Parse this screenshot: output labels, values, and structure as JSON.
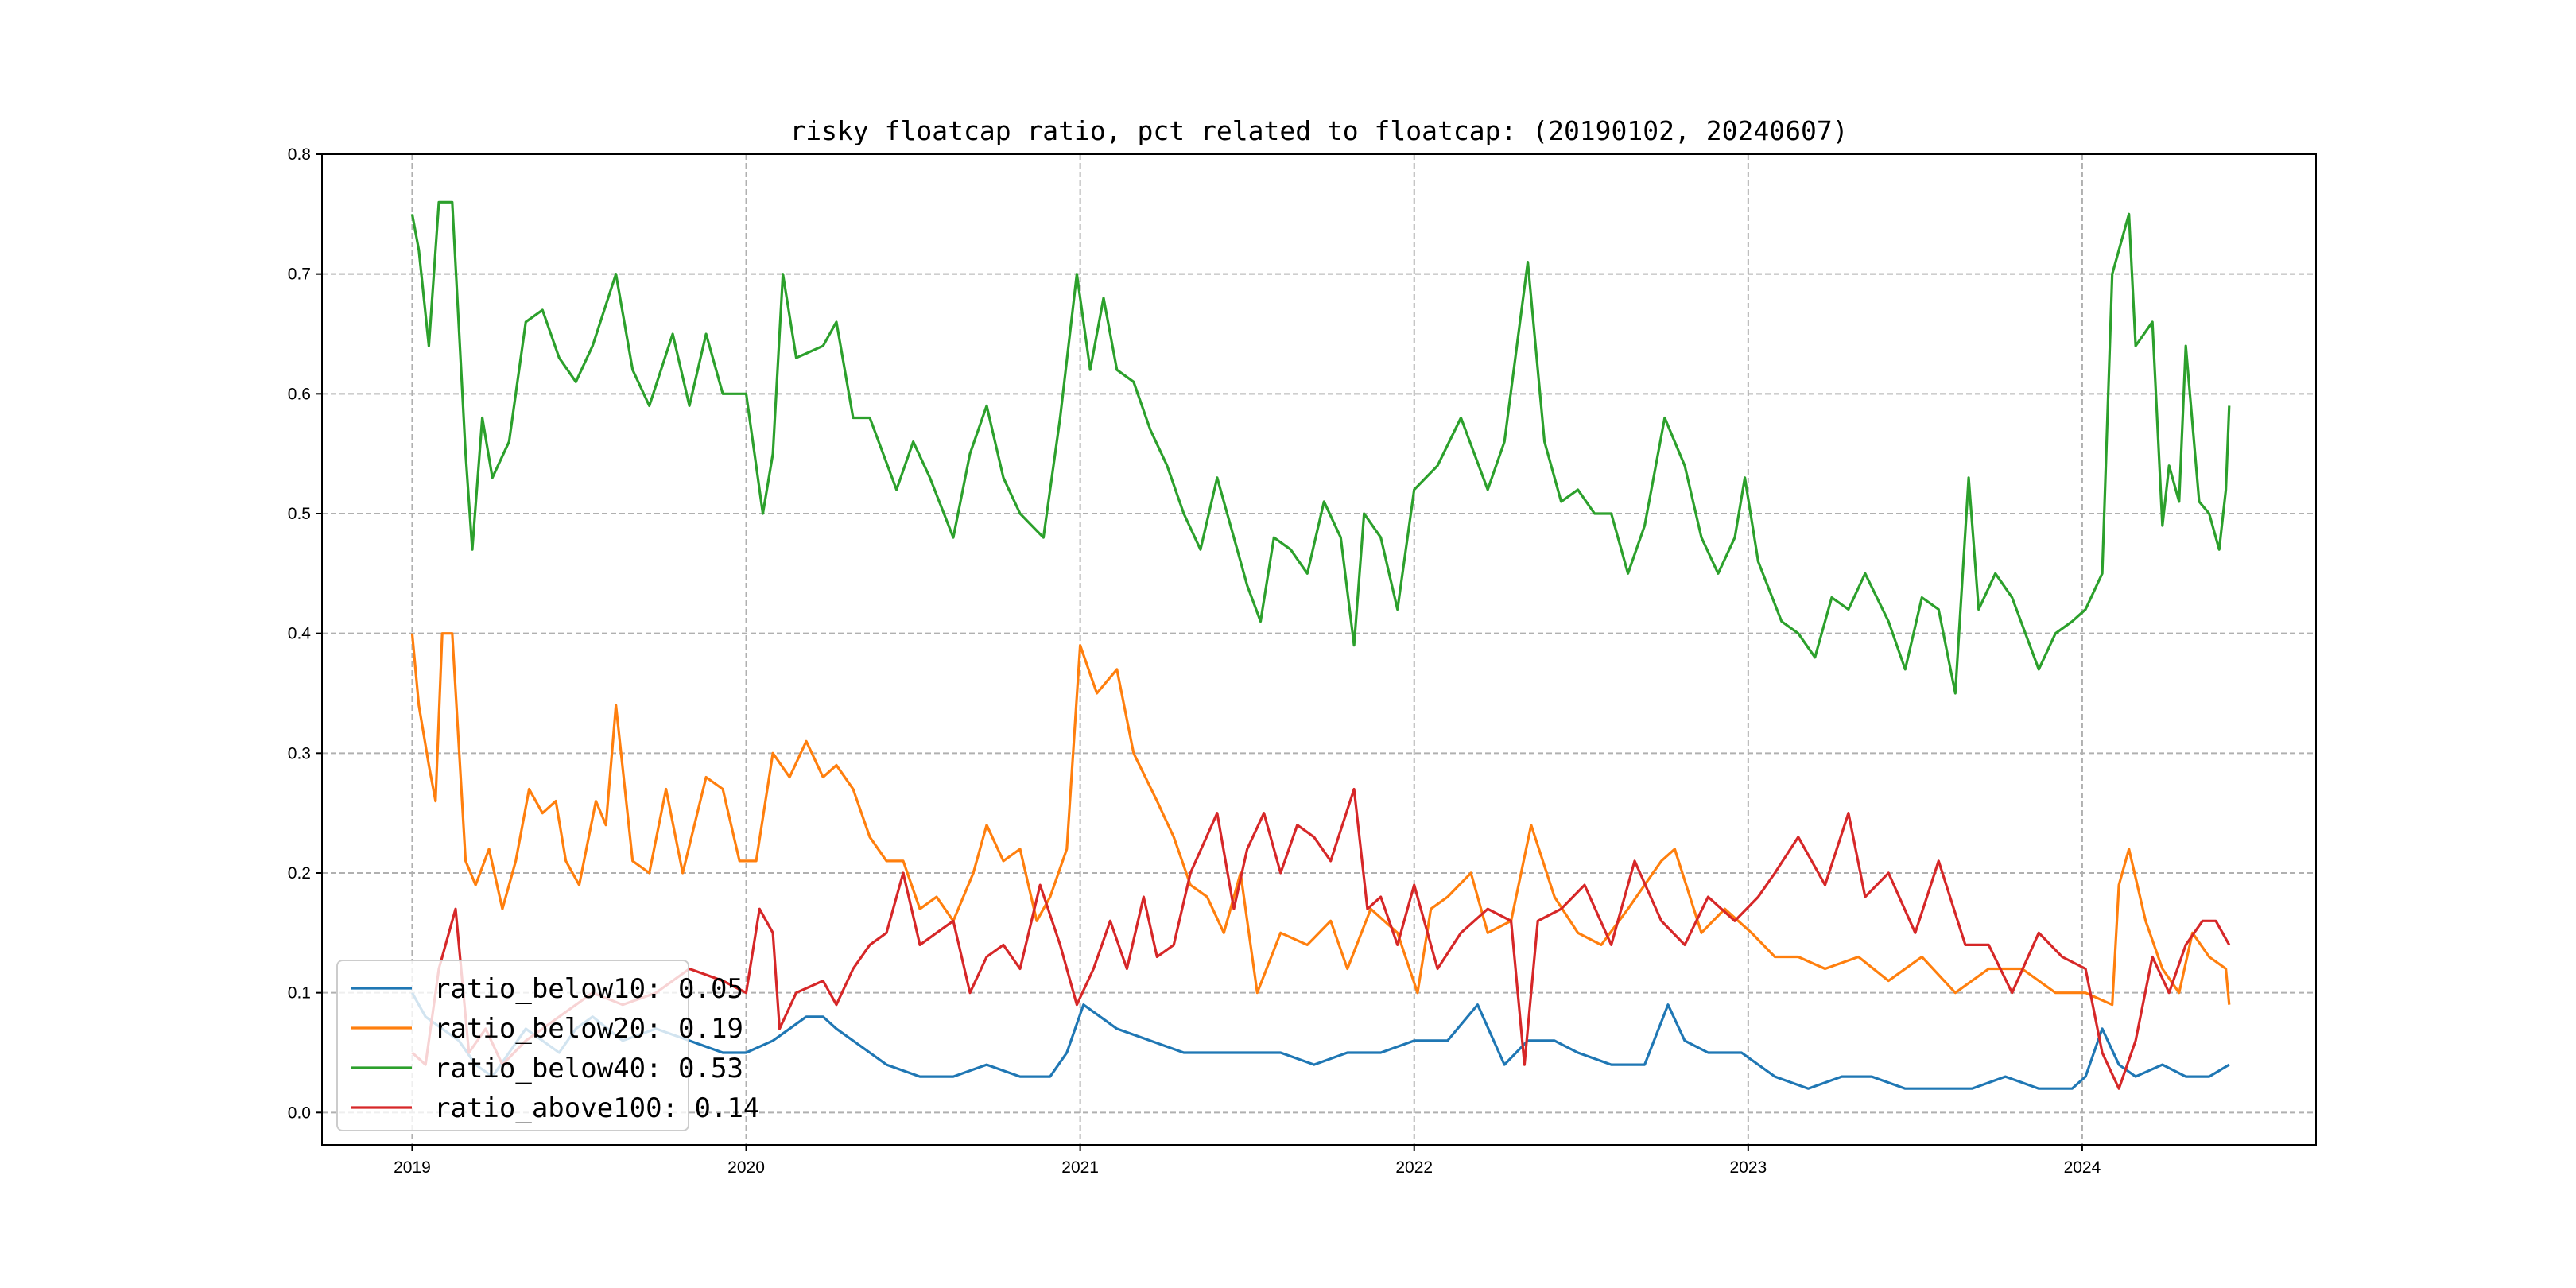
{
  "chart_data": {
    "type": "line",
    "title": "risky floatcap ratio, pct related to floatcap: (20190102, 20240607)",
    "xlabel": "",
    "ylabel": "",
    "xlim": [
      2018.73,
      2024.7
    ],
    "ylim": [
      -0.027,
      0.8
    ],
    "grid": true,
    "legend_position": "lower-left",
    "x_ticks": [
      2019,
      2020,
      2021,
      2022,
      2023,
      2024
    ],
    "x_tick_labels": [
      "2019",
      "2020",
      "2021",
      "2022",
      "2023",
      "2024"
    ],
    "y_ticks": [
      0.0,
      0.1,
      0.2,
      0.3,
      0.4,
      0.5,
      0.6,
      0.7,
      0.8
    ],
    "y_tick_labels": [
      "0.0",
      "0.1",
      "0.2",
      "0.3",
      "0.4",
      "0.5",
      "0.6",
      "0.7",
      "0.8"
    ],
    "series": [
      {
        "name": "ratio_below10",
        "legend": "ratio_below10: 0.05",
        "color": "#1f77b4",
        "x": [
          2019.0,
          2019.04,
          2019.09,
          2019.14,
          2019.19,
          2019.24,
          2019.29,
          2019.34,
          2019.39,
          2019.44,
          2019.49,
          2019.54,
          2019.63,
          2019.73,
          2019.83,
          2019.93,
          2020.0,
          2020.08,
          2020.13,
          2020.18,
          2020.23,
          2020.27,
          2020.32,
          2020.37,
          2020.42,
          2020.52,
          2020.62,
          2020.72,
          2020.82,
          2020.91,
          2020.96,
          2021.01,
          2021.06,
          2021.11,
          2021.21,
          2021.31,
          2021.41,
          2021.5,
          2021.6,
          2021.7,
          2021.8,
          2021.9,
          2022.0,
          2022.1,
          2022.19,
          2022.27,
          2022.34,
          2022.42,
          2022.49,
          2022.59,
          2022.69,
          2022.76,
          2022.81,
          2022.88,
          2022.98,
          2023.08,
          2023.18,
          2023.28,
          2023.37,
          2023.47,
          2023.57,
          2023.67,
          2023.77,
          2023.87,
          2023.97,
          2024.01,
          2024.06,
          2024.11,
          2024.16,
          2024.24,
          2024.31,
          2024.38,
          2024.44
        ],
        "y": [
          0.1,
          0.08,
          0.07,
          0.06,
          0.04,
          0.03,
          0.05,
          0.07,
          0.06,
          0.05,
          0.07,
          0.08,
          0.06,
          0.07,
          0.06,
          0.05,
          0.05,
          0.06,
          0.07,
          0.08,
          0.08,
          0.07,
          0.06,
          0.05,
          0.04,
          0.03,
          0.03,
          0.04,
          0.03,
          0.03,
          0.05,
          0.09,
          0.08,
          0.07,
          0.06,
          0.05,
          0.05,
          0.05,
          0.05,
          0.04,
          0.05,
          0.05,
          0.06,
          0.06,
          0.09,
          0.04,
          0.06,
          0.06,
          0.05,
          0.04,
          0.04,
          0.09,
          0.06,
          0.05,
          0.05,
          0.03,
          0.02,
          0.03,
          0.03,
          0.02,
          0.02,
          0.02,
          0.03,
          0.02,
          0.02,
          0.03,
          0.07,
          0.04,
          0.03,
          0.04,
          0.03,
          0.03,
          0.04
        ]
      },
      {
        "name": "ratio_below20",
        "legend": "ratio_below20: 0.19",
        "color": "#ff7f0e",
        "x": [
          2019.0,
          2019.02,
          2019.05,
          2019.07,
          2019.09,
          2019.12,
          2019.16,
          2019.19,
          2019.23,
          2019.27,
          2019.31,
          2019.35,
          2019.39,
          2019.43,
          2019.46,
          2019.5,
          2019.55,
          2019.58,
          2019.61,
          2019.66,
          2019.71,
          2019.76,
          2019.81,
          2019.88,
          2019.93,
          2019.98,
          2020.03,
          2020.08,
          2020.13,
          2020.18,
          2020.23,
          2020.27,
          2020.32,
          2020.37,
          2020.42,
          2020.47,
          2020.52,
          2020.57,
          2020.62,
          2020.68,
          2020.72,
          2020.77,
          2020.82,
          2020.87,
          2020.91,
          2020.96,
          2021.0,
          2021.05,
          2021.11,
          2021.16,
          2021.23,
          2021.28,
          2021.33,
          2021.38,
          2021.43,
          2021.48,
          2021.53,
          2021.6,
          2021.68,
          2021.75,
          2021.8,
          2021.87,
          2021.95,
          2022.01,
          2022.05,
          2022.1,
          2022.17,
          2022.22,
          2022.29,
          2022.35,
          2022.42,
          2022.49,
          2022.56,
          2022.64,
          2022.74,
          2022.78,
          2022.86,
          2022.93,
          2023.01,
          2023.08,
          2023.15,
          2023.23,
          2023.33,
          2023.42,
          2023.52,
          2023.62,
          2023.72,
          2023.82,
          2023.92,
          2024.01,
          2024.09,
          2024.11,
          2024.14,
          2024.19,
          2024.24,
          2024.29,
          2024.33,
          2024.38,
          2024.43,
          2024.44
        ],
        "y": [
          0.4,
          0.34,
          0.29,
          0.26,
          0.4,
          0.4,
          0.21,
          0.19,
          0.22,
          0.17,
          0.21,
          0.27,
          0.25,
          0.26,
          0.21,
          0.19,
          0.26,
          0.24,
          0.34,
          0.21,
          0.2,
          0.27,
          0.2,
          0.28,
          0.27,
          0.21,
          0.21,
          0.3,
          0.28,
          0.31,
          0.28,
          0.29,
          0.27,
          0.23,
          0.21,
          0.21,
          0.17,
          0.18,
          0.16,
          0.2,
          0.24,
          0.21,
          0.22,
          0.16,
          0.18,
          0.22,
          0.39,
          0.35,
          0.37,
          0.3,
          0.26,
          0.23,
          0.19,
          0.18,
          0.15,
          0.2,
          0.1,
          0.15,
          0.14,
          0.16,
          0.12,
          0.17,
          0.15,
          0.1,
          0.17,
          0.18,
          0.2,
          0.15,
          0.16,
          0.24,
          0.18,
          0.15,
          0.14,
          0.17,
          0.21,
          0.22,
          0.15,
          0.17,
          0.15,
          0.13,
          0.13,
          0.12,
          0.13,
          0.11,
          0.13,
          0.1,
          0.12,
          0.12,
          0.1,
          0.1,
          0.09,
          0.19,
          0.22,
          0.16,
          0.12,
          0.1,
          0.15,
          0.13,
          0.12,
          0.09
        ]
      },
      {
        "name": "ratio_below40",
        "legend": "ratio_below40: 0.53",
        "color": "#2ca02c",
        "x": [
          2019.0,
          2019.02,
          2019.05,
          2019.08,
          2019.12,
          2019.16,
          2019.18,
          2019.21,
          2019.24,
          2019.29,
          2019.34,
          2019.39,
          2019.44,
          2019.49,
          2019.54,
          2019.61,
          2019.66,
          2019.71,
          2019.78,
          2019.83,
          2019.88,
          2019.93,
          2020.0,
          2020.05,
          2020.08,
          2020.11,
          2020.15,
          2020.23,
          2020.27,
          2020.32,
          2020.37,
          2020.45,
          2020.5,
          2020.55,
          2020.62,
          2020.67,
          2020.72,
          2020.77,
          2020.82,
          2020.89,
          2020.94,
          2020.99,
          2021.03,
          2021.07,
          2021.11,
          2021.16,
          2021.21,
          2021.26,
          2021.31,
          2021.36,
          2021.41,
          2021.46,
          2021.5,
          2021.54,
          2021.58,
          2021.63,
          2021.68,
          2021.73,
          2021.78,
          2021.82,
          2021.85,
          2021.9,
          2021.95,
          2022.0,
          2022.07,
          2022.14,
          2022.22,
          2022.27,
          2022.34,
          2022.39,
          2022.44,
          2022.49,
          2022.54,
          2022.59,
          2022.64,
          2022.69,
          2022.75,
          2022.81,
          2022.86,
          2022.91,
          2022.96,
          2022.99,
          2023.03,
          2023.1,
          2023.15,
          2023.2,
          2023.25,
          2023.3,
          2023.35,
          2023.42,
          2023.47,
          2023.52,
          2023.57,
          2023.62,
          2023.66,
          2023.69,
          2023.74,
          2023.79,
          2023.87,
          2023.92,
          2023.97,
          2024.01,
          2024.06,
          2024.09,
          2024.14,
          2024.16,
          2024.21,
          2024.24,
          2024.26,
          2024.29,
          2024.31,
          2024.35,
          2024.38,
          2024.41,
          2024.43,
          2024.44
        ],
        "y": [
          0.75,
          0.72,
          0.64,
          0.76,
          0.76,
          0.55,
          0.47,
          0.58,
          0.53,
          0.56,
          0.66,
          0.67,
          0.63,
          0.61,
          0.64,
          0.7,
          0.62,
          0.59,
          0.65,
          0.59,
          0.65,
          0.6,
          0.6,
          0.5,
          0.55,
          0.7,
          0.63,
          0.64,
          0.66,
          0.58,
          0.58,
          0.52,
          0.56,
          0.53,
          0.48,
          0.55,
          0.59,
          0.53,
          0.5,
          0.48,
          0.58,
          0.7,
          0.62,
          0.68,
          0.62,
          0.61,
          0.57,
          0.54,
          0.5,
          0.47,
          0.53,
          0.48,
          0.44,
          0.41,
          0.48,
          0.47,
          0.45,
          0.51,
          0.48,
          0.39,
          0.5,
          0.48,
          0.42,
          0.52,
          0.54,
          0.58,
          0.52,
          0.56,
          0.71,
          0.56,
          0.51,
          0.52,
          0.5,
          0.5,
          0.45,
          0.49,
          0.58,
          0.54,
          0.48,
          0.45,
          0.48,
          0.53,
          0.46,
          0.41,
          0.4,
          0.38,
          0.43,
          0.42,
          0.45,
          0.41,
          0.37,
          0.43,
          0.42,
          0.35,
          0.53,
          0.42,
          0.45,
          0.43,
          0.37,
          0.4,
          0.41,
          0.42,
          0.45,
          0.7,
          0.75,
          0.64,
          0.66,
          0.49,
          0.54,
          0.51,
          0.64,
          0.51,
          0.5,
          0.47,
          0.52,
          0.59
        ]
      },
      {
        "name": "ratio_above100",
        "legend": "ratio_above100: 0.14",
        "color": "#d62728",
        "x": [
          2019.0,
          2019.04,
          2019.08,
          2019.13,
          2019.17,
          2019.22,
          2019.27,
          2019.34,
          2019.44,
          2019.54,
          2019.63,
          2019.73,
          2019.83,
          2019.93,
          2020.0,
          2020.04,
          2020.08,
          2020.1,
          2020.15,
          2020.23,
          2020.27,
          2020.32,
          2020.37,
          2020.42,
          2020.47,
          2020.52,
          2020.57,
          2020.62,
          2020.67,
          2020.72,
          2020.77,
          2020.82,
          2020.88,
          2020.94,
          2020.99,
          2021.04,
          2021.09,
          2021.14,
          2021.19,
          2021.23,
          2021.28,
          2021.33,
          2021.41,
          2021.46,
          2021.5,
          2021.55,
          2021.6,
          2021.65,
          2021.7,
          2021.75,
          2021.82,
          2021.86,
          2021.9,
          2021.95,
          2022.0,
          2022.07,
          2022.14,
          2022.22,
          2022.29,
          2022.33,
          2022.37,
          2022.44,
          2022.51,
          2022.59,
          2022.66,
          2022.74,
          2022.81,
          2022.88,
          2022.96,
          2023.03,
          2023.08,
          2023.15,
          2023.23,
          2023.3,
          2023.35,
          2023.42,
          2023.5,
          2023.57,
          2023.65,
          2023.72,
          2023.79,
          2023.87,
          2023.94,
          2024.01,
          2024.06,
          2024.11,
          2024.16,
          2024.21,
          2024.26,
          2024.31,
          2024.36,
          2024.4,
          2024.44
        ],
        "y": [
          0.05,
          0.04,
          0.12,
          0.17,
          0.05,
          0.07,
          0.04,
          0.06,
          0.08,
          0.1,
          0.09,
          0.1,
          0.12,
          0.11,
          0.1,
          0.17,
          0.15,
          0.07,
          0.1,
          0.11,
          0.09,
          0.12,
          0.14,
          0.15,
          0.2,
          0.14,
          0.15,
          0.16,
          0.1,
          0.13,
          0.14,
          0.12,
          0.19,
          0.14,
          0.09,
          0.12,
          0.16,
          0.12,
          0.18,
          0.13,
          0.14,
          0.2,
          0.25,
          0.17,
          0.22,
          0.25,
          0.2,
          0.24,
          0.23,
          0.21,
          0.27,
          0.17,
          0.18,
          0.14,
          0.19,
          0.12,
          0.15,
          0.17,
          0.16,
          0.04,
          0.16,
          0.17,
          0.19,
          0.14,
          0.21,
          0.16,
          0.14,
          0.18,
          0.16,
          0.18,
          0.2,
          0.23,
          0.19,
          0.25,
          0.18,
          0.2,
          0.15,
          0.21,
          0.14,
          0.14,
          0.1,
          0.15,
          0.13,
          0.12,
          0.05,
          0.02,
          0.06,
          0.13,
          0.1,
          0.14,
          0.16,
          0.16,
          0.14
        ]
      }
    ]
  }
}
